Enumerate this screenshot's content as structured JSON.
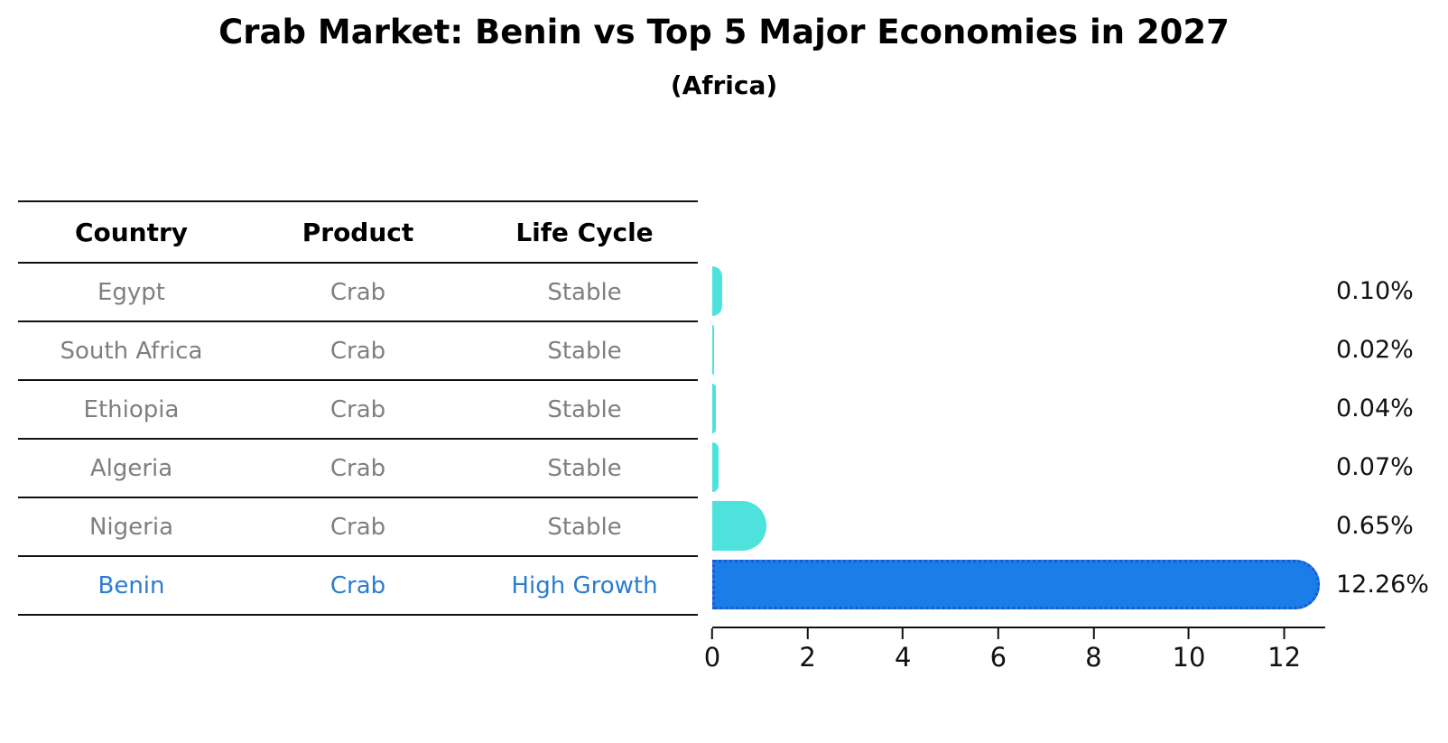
{
  "title": "Crab Market: Benin vs Top 5 Major Economies in 2027",
  "subtitle": "(Africa)",
  "table": {
    "headers": [
      "Country",
      "Product",
      "Life Cycle"
    ],
    "rows": [
      {
        "country": "Egypt",
        "product": "Crab",
        "life_cycle": "Stable",
        "highlight": false
      },
      {
        "country": "South Africa",
        "product": "Crab",
        "life_cycle": "Stable",
        "highlight": false
      },
      {
        "country": "Ethiopia",
        "product": "Crab",
        "life_cycle": "Stable",
        "highlight": false
      },
      {
        "country": "Algeria",
        "product": "Crab",
        "life_cycle": "Stable",
        "highlight": false
      },
      {
        "country": "Nigeria",
        "product": "Crab",
        "life_cycle": "Stable",
        "highlight": false
      },
      {
        "country": "Benin",
        "product": "Crab",
        "life_cycle": "High Growth",
        "highlight": true
      }
    ]
  },
  "chart_data": {
    "type": "bar",
    "orientation": "horizontal",
    "title": "Crab Market: Benin vs Top 5 Major Economies in 2027",
    "subtitle": "(Africa)",
    "categories": [
      "Egypt",
      "South Africa",
      "Ethiopia",
      "Algeria",
      "Nigeria",
      "Benin"
    ],
    "values": [
      0.1,
      0.02,
      0.04,
      0.07,
      0.65,
      12.26
    ],
    "value_labels": [
      "0.10%",
      "0.02%",
      "0.04%",
      "0.07%",
      "0.65%",
      "12.26%"
    ],
    "x_ticks": [
      0,
      2,
      4,
      6,
      8,
      10,
      12
    ],
    "xlim": [
      0,
      12.86
    ],
    "grid": false,
    "legend": "none",
    "highlight_index": 5
  },
  "colors": {
    "bar_default": "#4de3dc",
    "bar_highlight": "#1b7ee8",
    "bar_highlight_border": "#1a5ad0",
    "row_text": "#7f7f7f",
    "highlight_text": "#2b7ccf",
    "axis": "#111111"
  }
}
